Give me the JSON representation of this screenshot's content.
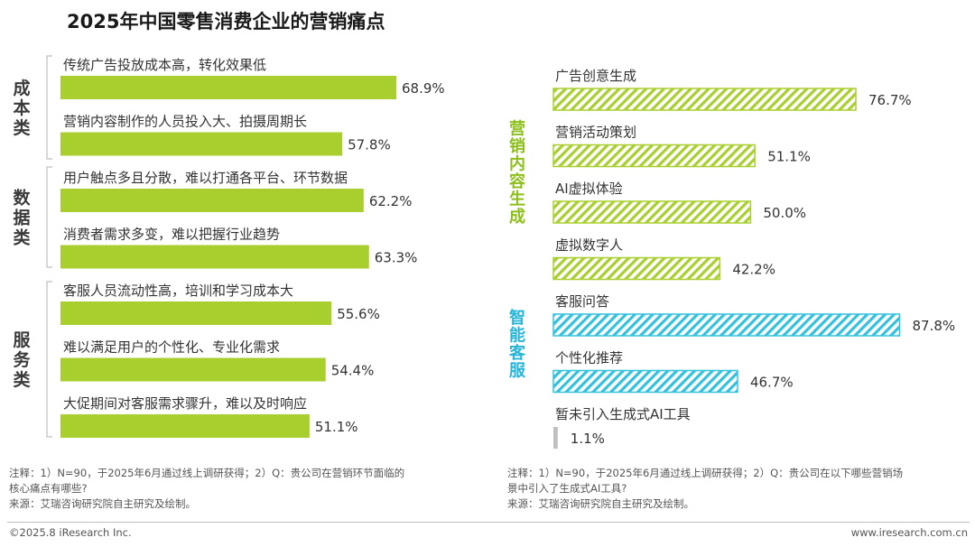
{
  "title": "2025年中国零售消费企业的营销痛点",
  "colors": {
    "green": "#a8cf2e",
    "teal": "#33c1de",
    "gray": "#bfbfbf",
    "text": "#333333",
    "category_green": "#8cbf1a",
    "category_teal": "#26b5d6",
    "category_dark": "#3a3a3a"
  },
  "chart_data": [
    {
      "type": "bar",
      "orientation": "horizontal",
      "groups": [
        {
          "name": "成本类",
          "categories": [
            "传统广告投放成本高，转化效果低",
            "营销内容制作的人员投入大、拍摄周期长"
          ],
          "values": [
            68.9,
            57.8
          ]
        },
        {
          "name": "数据类",
          "categories": [
            "用户触点多且分散，难以打通各平台、环节数据",
            "消费者需求多变，难以把握行业趋势"
          ],
          "values": [
            62.2,
            63.3
          ]
        },
        {
          "name": "服务类",
          "categories": [
            "客服人员流动性高，培训和学习成本大",
            "难以满足用户的个性化、专业化需求",
            "大促期间对客服需求骤升，难以及时响应"
          ],
          "values": [
            55.6,
            54.4,
            51.1
          ]
        }
      ],
      "value_suffix": "%",
      "bar_style": "solid"
    },
    {
      "type": "bar",
      "orientation": "horizontal",
      "groups": [
        {
          "name": "营销内容生成",
          "categories": [
            "广告创意生成",
            "营销活动策划",
            "AI虚拟体验",
            "虚拟数字人"
          ],
          "values": [
            76.7,
            51.1,
            50.0,
            42.2
          ],
          "color": "green"
        },
        {
          "name": "智能客服",
          "categories": [
            "客服问答",
            "个性化推荐"
          ],
          "values": [
            87.8,
            46.7
          ],
          "color": "teal"
        },
        {
          "name": "",
          "categories": [
            "暂未引入生成式AI工具"
          ],
          "values": [
            1.1
          ],
          "color": "gray"
        }
      ],
      "value_suffix": "%",
      "bar_style": "hatched"
    }
  ],
  "notes": {
    "left": [
      "注释：1）N=90，于2025年6月通过线上调研获得；2）Q：贵公司在营销环节面临的",
      "核心痛点有哪些?",
      "来源：艾瑞咨询研究院自主研究及绘制。"
    ],
    "right": [
      "注释：1）N=90，于2025年6月通过线上调研获得；2）Q：贵公司在以下哪些营销场",
      "景中引入了生成式AI工具?",
      "来源：艾瑞咨询研究院自主研究及绘制。"
    ]
  },
  "footer": {
    "copyright": "©2025.8 iResearch Inc.",
    "website": "www.iresearch.com.cn"
  }
}
